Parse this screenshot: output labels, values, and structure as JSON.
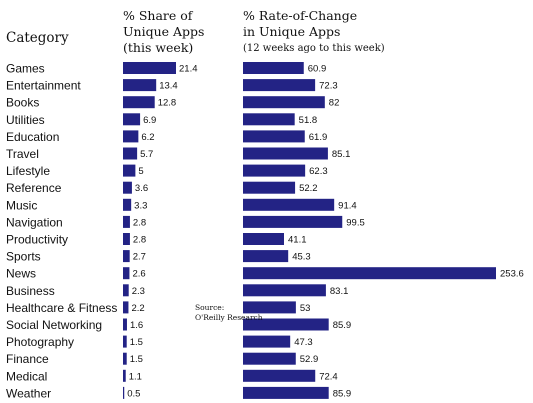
{
  "chart_data": {
    "type": "bar",
    "orientation": "horizontal",
    "category_header": "Category",
    "categories": [
      "Games",
      "Entertainment",
      "Books",
      "Utilities",
      "Education",
      "Travel",
      "Lifestyle",
      "Reference",
      "Music",
      "Navigation",
      "Productivity",
      "Sports",
      "News",
      "Business",
      "Healthcare & Fitness",
      "Social Networking",
      "Photography",
      "Finance",
      "Medical",
      "Weather"
    ],
    "series": [
      {
        "title_lines": [
          "% Share of",
          "Unique Apps",
          "(this week)"
        ],
        "values": [
          21.4,
          13.4,
          12.8,
          6.9,
          6.2,
          5.7,
          5,
          3.6,
          3.3,
          2.8,
          2.8,
          2.7,
          2.6,
          2.3,
          2.2,
          1.6,
          1.5,
          1.5,
          1.1,
          0.5
        ],
        "labels": [
          "21.4",
          "13.4",
          "12.8",
          "6.9",
          "6.2",
          "5.7",
          "5",
          "3.6",
          "3.3",
          "2.8",
          "2.8",
          "2.7",
          "2.6",
          "2.3",
          "2.2",
          "1.6",
          "1.5",
          "1.5",
          "1.1",
          "0.5"
        ]
      },
      {
        "title_lines": [
          "% Rate-of-Change",
          "in Unique Apps"
        ],
        "subtitle": "(12 weeks ago to this week)",
        "values": [
          60.9,
          72.3,
          82,
          51.8,
          61.9,
          85.1,
          62.3,
          52.2,
          91.4,
          99.5,
          41.1,
          45.3,
          253.6,
          83.1,
          53,
          85.9,
          47.3,
          52.9,
          72.4,
          85.9
        ],
        "labels": [
          "60.9",
          "72.3",
          "82",
          "51.8",
          "61.9",
          "85.1",
          "62.3",
          "52.2",
          "91.4",
          "99.5",
          "41.1",
          "45.3",
          "253.6",
          "83.1",
          "53",
          "85.9",
          "47.3",
          "52.9",
          "72.4",
          "85.9"
        ]
      }
    ],
    "source_lines": [
      "Source:",
      "O'Reilly Research"
    ],
    "bar_color": "#232385",
    "grid": false,
    "legend": "none"
  }
}
